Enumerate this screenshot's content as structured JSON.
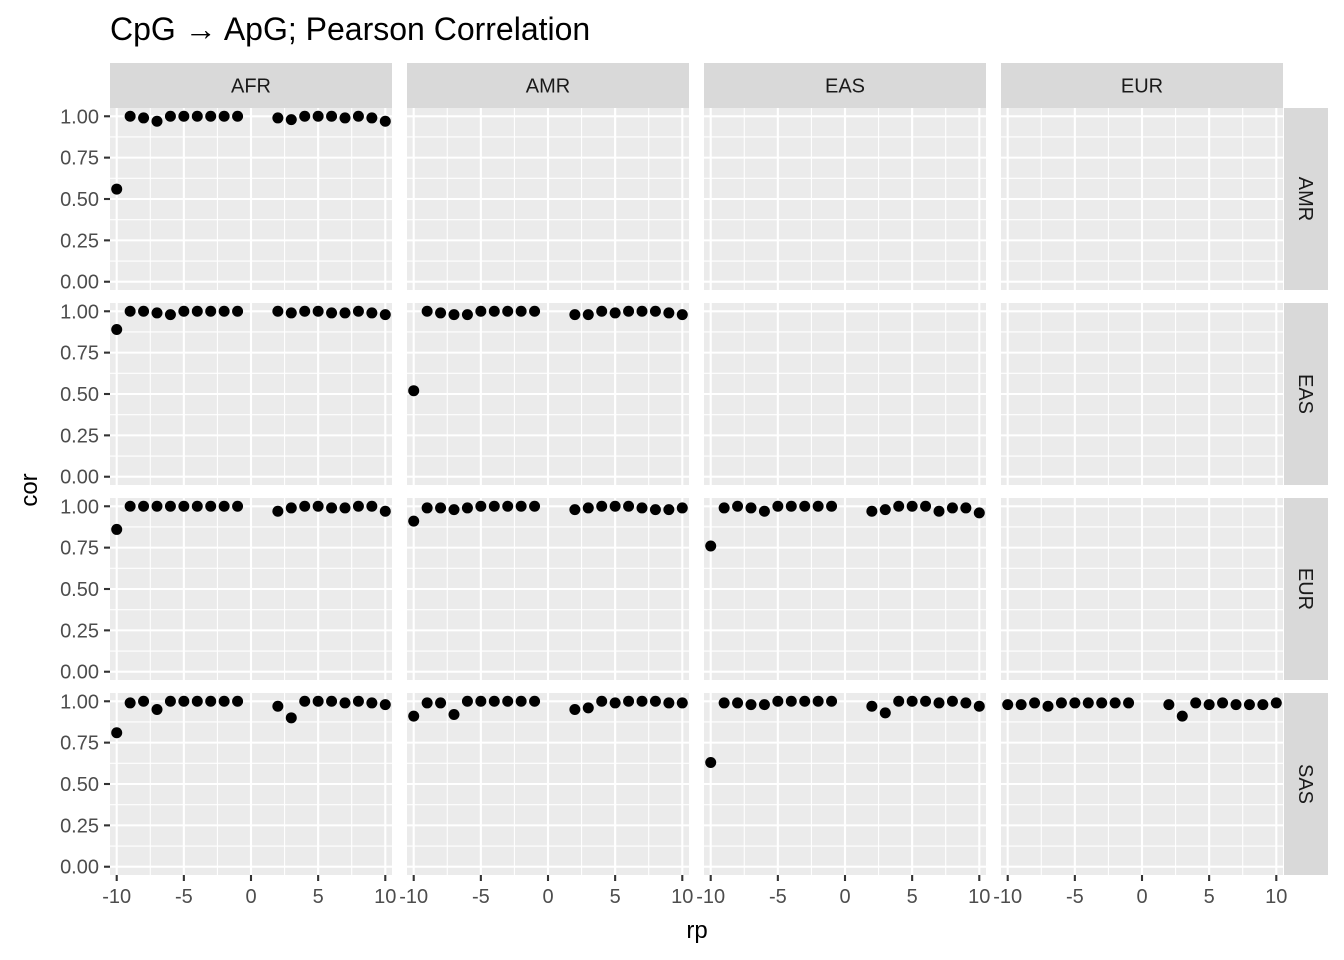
{
  "chart_data": {
    "type": "scatter",
    "title": "CpG → ApG; Pearson Correlation",
    "xlabel": "rp",
    "ylabel": "cor",
    "xlim": [
      -10.5,
      10.5
    ],
    "ylim": [
      -0.05,
      1.05
    ],
    "x_ticks": [
      -10,
      -5,
      0,
      5,
      10
    ],
    "x_tick_labels": [
      "-10",
      "-5",
      "0",
      "5",
      "10"
    ],
    "y_ticks": [
      0,
      0.25,
      0.5,
      0.75,
      1.0
    ],
    "y_tick_labels": [
      "0.00",
      "0.25",
      "0.50",
      "0.75",
      "1.00"
    ],
    "grid": true,
    "facet_cols": [
      "AFR",
      "AMR",
      "EAS",
      "EUR"
    ],
    "facet_rows": [
      "AMR",
      "EAS",
      "EUR",
      "SAS"
    ],
    "x": [
      -10,
      -9,
      -8,
      -7,
      -6,
      -5,
      -4,
      -3,
      -2,
      -1,
      2,
      3,
      4,
      5,
      6,
      7,
      8,
      9,
      10
    ],
    "panels": [
      {
        "row": "AMR",
        "col": "AFR",
        "y": [
          0.56,
          1.0,
          0.99,
          0.97,
          1.0,
          1.0,
          1.0,
          1.0,
          1.0,
          1.0,
          0.99,
          0.98,
          1.0,
          1.0,
          1.0,
          0.99,
          1.0,
          0.99,
          0.97
        ]
      },
      {
        "row": "AMR",
        "col": "AMR",
        "y": []
      },
      {
        "row": "AMR",
        "col": "EAS",
        "y": []
      },
      {
        "row": "AMR",
        "col": "EUR",
        "y": []
      },
      {
        "row": "EAS",
        "col": "AFR",
        "y": [
          0.89,
          1.0,
          1.0,
          0.99,
          0.98,
          1.0,
          1.0,
          1.0,
          1.0,
          1.0,
          1.0,
          0.99,
          1.0,
          1.0,
          0.99,
          0.99,
          1.0,
          0.99,
          0.98
        ]
      },
      {
        "row": "EAS",
        "col": "AMR",
        "y": [
          0.52,
          1.0,
          0.99,
          0.98,
          0.98,
          1.0,
          1.0,
          1.0,
          1.0,
          1.0,
          0.98,
          0.98,
          1.0,
          0.99,
          1.0,
          1.0,
          1.0,
          0.99,
          0.98
        ]
      },
      {
        "row": "EAS",
        "col": "EAS",
        "y": []
      },
      {
        "row": "EAS",
        "col": "EUR",
        "y": []
      },
      {
        "row": "EUR",
        "col": "AFR",
        "y": [
          0.86,
          1.0,
          1.0,
          1.0,
          1.0,
          1.0,
          1.0,
          1.0,
          1.0,
          1.0,
          0.97,
          0.99,
          1.0,
          1.0,
          0.99,
          0.99,
          1.0,
          1.0,
          0.97
        ]
      },
      {
        "row": "EUR",
        "col": "AMR",
        "y": [
          0.91,
          0.99,
          0.99,
          0.98,
          0.99,
          1.0,
          1.0,
          1.0,
          1.0,
          1.0,
          0.98,
          0.99,
          1.0,
          1.0,
          1.0,
          0.99,
          0.98,
          0.98,
          0.99
        ]
      },
      {
        "row": "EUR",
        "col": "EAS",
        "y": [
          0.76,
          0.99,
          1.0,
          0.99,
          0.97,
          1.0,
          1.0,
          1.0,
          1.0,
          1.0,
          0.97,
          0.98,
          1.0,
          1.0,
          1.0,
          0.97,
          0.99,
          0.99,
          0.96
        ]
      },
      {
        "row": "EUR",
        "col": "EUR",
        "y": []
      },
      {
        "row": "SAS",
        "col": "AFR",
        "y": [
          0.81,
          0.99,
          1.0,
          0.95,
          1.0,
          1.0,
          1.0,
          1.0,
          1.0,
          1.0,
          0.97,
          0.9,
          1.0,
          1.0,
          1.0,
          0.99,
          1.0,
          0.99,
          0.98
        ]
      },
      {
        "row": "SAS",
        "col": "AMR",
        "y": [
          0.91,
          0.99,
          0.99,
          0.92,
          1.0,
          1.0,
          1.0,
          1.0,
          1.0,
          1.0,
          0.95,
          0.96,
          1.0,
          0.99,
          1.0,
          1.0,
          1.0,
          0.99,
          0.99
        ]
      },
      {
        "row": "SAS",
        "col": "EAS",
        "y": [
          0.63,
          0.99,
          0.99,
          0.98,
          0.98,
          1.0,
          1.0,
          1.0,
          1.0,
          1.0,
          0.97,
          0.93,
          1.0,
          1.0,
          1.0,
          0.99,
          1.0,
          0.99,
          0.97
        ]
      },
      {
        "row": "SAS",
        "col": "EUR",
        "y": [
          0.98,
          0.98,
          0.99,
          0.97,
          0.99,
          0.99,
          0.99,
          0.99,
          0.99,
          0.99,
          0.98,
          0.91,
          0.99,
          0.98,
          0.99,
          0.98,
          0.98,
          0.98,
          0.99
        ]
      }
    ]
  }
}
